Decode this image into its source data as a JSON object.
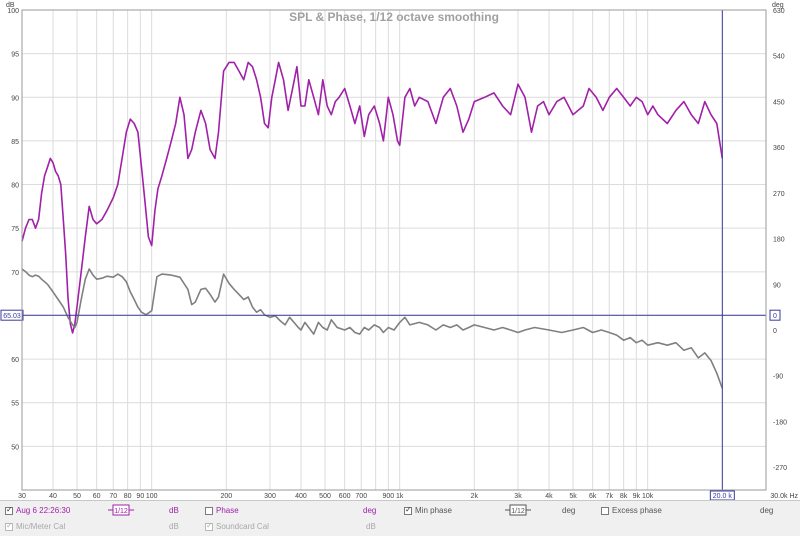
{
  "chart_data": {
    "type": "line",
    "title": "SPL & Phase, 1/12 octave smoothing",
    "x_scale": "log",
    "xlim": [
      30,
      30000
    ],
    "ylim": [
      45,
      100
    ],
    "y2lim": [
      -315,
      630
    ],
    "y_unit": "dB",
    "y2_unit": "deg",
    "x_unit": "Hz",
    "x_ticks": [
      {
        "v": 30,
        "label": "30"
      },
      {
        "v": 40,
        "label": "40"
      },
      {
        "v": 50,
        "label": "50"
      },
      {
        "v": 60,
        "label": "60"
      },
      {
        "v": 70,
        "label": "70"
      },
      {
        "v": 80,
        "label": "80"
      },
      {
        "v": 90,
        "label": "90"
      },
      {
        "v": 100,
        "label": "100"
      },
      {
        "v": 200,
        "label": "200"
      },
      {
        "v": 300,
        "label": "300"
      },
      {
        "v": 400,
        "label": "400"
      },
      {
        "v": 500,
        "label": "500"
      },
      {
        "v": 600,
        "label": "600"
      },
      {
        "v": 700,
        "label": "700"
      },
      {
        "v": 900,
        "label": "900"
      },
      {
        "v": 1000,
        "label": "1k"
      },
      {
        "v": 2000,
        "label": "2k"
      },
      {
        "v": 3000,
        "label": "3k"
      },
      {
        "v": 4000,
        "label": "4k"
      },
      {
        "v": 5000,
        "label": "5k"
      },
      {
        "v": 6000,
        "label": "6k"
      },
      {
        "v": 7000,
        "label": "7k"
      },
      {
        "v": 8000,
        "label": "8k"
      },
      {
        "v": 9000,
        "label": "9k"
      },
      {
        "v": 10000,
        "label": "10k"
      },
      {
        "v": 30000,
        "label": "30.0k Hz"
      }
    ],
    "x_minor_gridlines": [
      800,
      20000
    ],
    "y_ticks": [
      "50",
      "55",
      "60",
      "65",
      "70",
      "75",
      "80",
      "85",
      "90",
      "95",
      "100"
    ],
    "y2_ticks": [
      "-270",
      "-180",
      "-90",
      "0",
      "90",
      "180",
      "270",
      "360",
      "450",
      "540",
      "630"
    ],
    "grid": true,
    "cursor": {
      "x": 20000,
      "x_label": "20.0 k",
      "y": 65.03,
      "y_label": "65.03",
      "y2_label": "0"
    },
    "series": [
      {
        "name": "Aug 6 22:26:30",
        "axis": "left",
        "unit": "dB",
        "color": "#a020a8",
        "points": [
          [
            30,
            73.5
          ],
          [
            31,
            75
          ],
          [
            32,
            76
          ],
          [
            33,
            76
          ],
          [
            34,
            75
          ],
          [
            35,
            76
          ],
          [
            36,
            79
          ],
          [
            37,
            81
          ],
          [
            38,
            82
          ],
          [
            39,
            83
          ],
          [
            40,
            82.5
          ],
          [
            41,
            81.5
          ],
          [
            42,
            81
          ],
          [
            43,
            80
          ],
          [
            44,
            76
          ],
          [
            45,
            72
          ],
          [
            46,
            67
          ],
          [
            47,
            64
          ],
          [
            48,
            63
          ],
          [
            49,
            64
          ],
          [
            50,
            66
          ],
          [
            52,
            70
          ],
          [
            54,
            74
          ],
          [
            56,
            77.5
          ],
          [
            58,
            76
          ],
          [
            60,
            75.5
          ],
          [
            63,
            76
          ],
          [
            66,
            77
          ],
          [
            70,
            78.5
          ],
          [
            73,
            80
          ],
          [
            76,
            83
          ],
          [
            79,
            86
          ],
          [
            82,
            87.5
          ],
          [
            85,
            87
          ],
          [
            88,
            86
          ],
          [
            91,
            82
          ],
          [
            94,
            78
          ],
          [
            97,
            74
          ],
          [
            100,
            73
          ],
          [
            103,
            77
          ],
          [
            106,
            79.5
          ],
          [
            110,
            81
          ],
          [
            115,
            83
          ],
          [
            120,
            85
          ],
          [
            125,
            87
          ],
          [
            130,
            90
          ],
          [
            135,
            88
          ],
          [
            140,
            83
          ],
          [
            145,
            84
          ],
          [
            150,
            86
          ],
          [
            158,
            88.5
          ],
          [
            165,
            87
          ],
          [
            172,
            84
          ],
          [
            180,
            83
          ],
          [
            186,
            86
          ],
          [
            195,
            93
          ],
          [
            205,
            94
          ],
          [
            215,
            94
          ],
          [
            225,
            93
          ],
          [
            235,
            92
          ],
          [
            245,
            94
          ],
          [
            255,
            93.5
          ],
          [
            265,
            92
          ],
          [
            275,
            90
          ],
          [
            285,
            87
          ],
          [
            295,
            86.5
          ],
          [
            305,
            90
          ],
          [
            315,
            92
          ],
          [
            325,
            94
          ],
          [
            340,
            92
          ],
          [
            355,
            88.5
          ],
          [
            370,
            91
          ],
          [
            385,
            93.5
          ],
          [
            400,
            89
          ],
          [
            415,
            89
          ],
          [
            430,
            92
          ],
          [
            450,
            90
          ],
          [
            470,
            88
          ],
          [
            490,
            92
          ],
          [
            510,
            89
          ],
          [
            530,
            88
          ],
          [
            550,
            89.5
          ],
          [
            570,
            90
          ],
          [
            600,
            91
          ],
          [
            630,
            89
          ],
          [
            660,
            87
          ],
          [
            690,
            89
          ],
          [
            720,
            85.5
          ],
          [
            750,
            88
          ],
          [
            790,
            89
          ],
          [
            830,
            87
          ],
          [
            860,
            85
          ],
          [
            900,
            90
          ],
          [
            940,
            88
          ],
          [
            980,
            85
          ],
          [
            1000,
            84.5
          ],
          [
            1050,
            90
          ],
          [
            1100,
            91
          ],
          [
            1150,
            89
          ],
          [
            1200,
            90
          ],
          [
            1300,
            89.5
          ],
          [
            1400,
            87
          ],
          [
            1500,
            90
          ],
          [
            1600,
            91
          ],
          [
            1700,
            89
          ],
          [
            1800,
            86
          ],
          [
            1900,
            87.5
          ],
          [
            2000,
            89.5
          ],
          [
            2200,
            90
          ],
          [
            2400,
            90.5
          ],
          [
            2600,
            89
          ],
          [
            2800,
            88
          ],
          [
            3000,
            91.5
          ],
          [
            3200,
            90
          ],
          [
            3400,
            86
          ],
          [
            3600,
            89
          ],
          [
            3800,
            89.5
          ],
          [
            4000,
            88
          ],
          [
            4300,
            89.5
          ],
          [
            4600,
            90
          ],
          [
            5000,
            88
          ],
          [
            5500,
            89
          ],
          [
            5800,
            91
          ],
          [
            6200,
            90
          ],
          [
            6600,
            88.5
          ],
          [
            7000,
            90
          ],
          [
            7500,
            91
          ],
          [
            8000,
            90
          ],
          [
            8500,
            89
          ],
          [
            9000,
            90
          ],
          [
            9500,
            89.5
          ],
          [
            10000,
            88
          ],
          [
            10500,
            89
          ],
          [
            11000,
            88
          ],
          [
            12000,
            87
          ],
          [
            13000,
            88.5
          ],
          [
            14000,
            89.5
          ],
          [
            15000,
            88
          ],
          [
            16000,
            87
          ],
          [
            17000,
            89.5
          ],
          [
            18000,
            88
          ],
          [
            19000,
            87
          ],
          [
            20000,
            83
          ]
        ]
      },
      {
        "name": "Min phase",
        "axis": "right",
        "unit": "deg",
        "color": "#808080",
        "points": [
          [
            30,
            120
          ],
          [
            31,
            115
          ],
          [
            32,
            108
          ],
          [
            33,
            105
          ],
          [
            34,
            108
          ],
          [
            35,
            106
          ],
          [
            36,
            100
          ],
          [
            38,
            90
          ],
          [
            40,
            75
          ],
          [
            42,
            60
          ],
          [
            44,
            45
          ],
          [
            46,
            25
          ],
          [
            48,
            10
          ],
          [
            49,
            5
          ],
          [
            50,
            15
          ],
          [
            52,
            60
          ],
          [
            54,
            100
          ],
          [
            56,
            120
          ],
          [
            58,
            108
          ],
          [
            60,
            100
          ],
          [
            63,
            102
          ],
          [
            66,
            106
          ],
          [
            70,
            104
          ],
          [
            73,
            110
          ],
          [
            76,
            105
          ],
          [
            79,
            95
          ],
          [
            82,
            75
          ],
          [
            85,
            60
          ],
          [
            88,
            45
          ],
          [
            91,
            35
          ],
          [
            95,
            30
          ],
          [
            100,
            38
          ],
          [
            105,
            105
          ],
          [
            110,
            110
          ],
          [
            120,
            108
          ],
          [
            130,
            104
          ],
          [
            140,
            80
          ],
          [
            145,
            50
          ],
          [
            150,
            55
          ],
          [
            158,
            80
          ],
          [
            165,
            82
          ],
          [
            172,
            70
          ],
          [
            180,
            55
          ],
          [
            186,
            65
          ],
          [
            195,
            110
          ],
          [
            205,
            92
          ],
          [
            215,
            80
          ],
          [
            225,
            70
          ],
          [
            235,
            60
          ],
          [
            245,
            65
          ],
          [
            255,
            45
          ],
          [
            265,
            35
          ],
          [
            275,
            40
          ],
          [
            285,
            30
          ],
          [
            300,
            25
          ],
          [
            315,
            28
          ],
          [
            330,
            18
          ],
          [
            345,
            10
          ],
          [
            360,
            25
          ],
          [
            375,
            15
          ],
          [
            390,
            5
          ],
          [
            400,
            0
          ],
          [
            415,
            15
          ],
          [
            430,
            5
          ],
          [
            450,
            -8
          ],
          [
            470,
            15
          ],
          [
            490,
            5
          ],
          [
            510,
            0
          ],
          [
            530,
            20
          ],
          [
            560,
            5
          ],
          [
            600,
            0
          ],
          [
            630,
            5
          ],
          [
            660,
            -5
          ],
          [
            690,
            -8
          ],
          [
            720,
            5
          ],
          [
            750,
            0
          ],
          [
            790,
            10
          ],
          [
            830,
            5
          ],
          [
            860,
            -5
          ],
          [
            900,
            5
          ],
          [
            950,
            0
          ],
          [
            1000,
            15
          ],
          [
            1050,
            25
          ],
          [
            1100,
            10
          ],
          [
            1200,
            15
          ],
          [
            1300,
            10
          ],
          [
            1400,
            0
          ],
          [
            1500,
            10
          ],
          [
            1600,
            5
          ],
          [
            1700,
            10
          ],
          [
            1800,
            0
          ],
          [
            1900,
            5
          ],
          [
            2000,
            10
          ],
          [
            2200,
            5
          ],
          [
            2400,
            0
          ],
          [
            2600,
            5
          ],
          [
            2800,
            0
          ],
          [
            3000,
            -5
          ],
          [
            3200,
            0
          ],
          [
            3500,
            5
          ],
          [
            4000,
            0
          ],
          [
            4500,
            -5
          ],
          [
            5000,
            0
          ],
          [
            5500,
            5
          ],
          [
            6000,
            -5
          ],
          [
            6500,
            0
          ],
          [
            7000,
            -5
          ],
          [
            7500,
            -10
          ],
          [
            8000,
            -20
          ],
          [
            8500,
            -15
          ],
          [
            9000,
            -25
          ],
          [
            9500,
            -20
          ],
          [
            10000,
            -30
          ],
          [
            11000,
            -25
          ],
          [
            12000,
            -30
          ],
          [
            13000,
            -25
          ],
          [
            14000,
            -40
          ],
          [
            15000,
            -35
          ],
          [
            16000,
            -55
          ],
          [
            17000,
            -45
          ],
          [
            18000,
            -60
          ],
          [
            19000,
            -85
          ],
          [
            20000,
            -115
          ]
        ]
      }
    ]
  },
  "legend": {
    "row1": [
      {
        "key": "meas",
        "label": "Aug 6 22:26:30",
        "checked": true,
        "unit": "dB",
        "smoothing": "1/12",
        "color": "#a020a8"
      },
      {
        "key": "phase",
        "label": "Phase",
        "checked": false,
        "unit": "deg",
        "color": "#a020a8"
      },
      {
        "key": "minphase",
        "label": "Min phase",
        "checked": true,
        "unit": "deg",
        "smoothing": "1/12",
        "color": "#555555"
      },
      {
        "key": "excess",
        "label": "Excess phase",
        "checked": false,
        "unit": "deg",
        "color": "#555555"
      }
    ],
    "row2": [
      {
        "key": "mic",
        "label": "Mic/Meter Cal",
        "checked": true,
        "unit": "dB",
        "disabled": true
      },
      {
        "key": "sound",
        "label": "Soundcard Cal",
        "checked": true,
        "unit": "dB",
        "disabled": true
      }
    ]
  }
}
